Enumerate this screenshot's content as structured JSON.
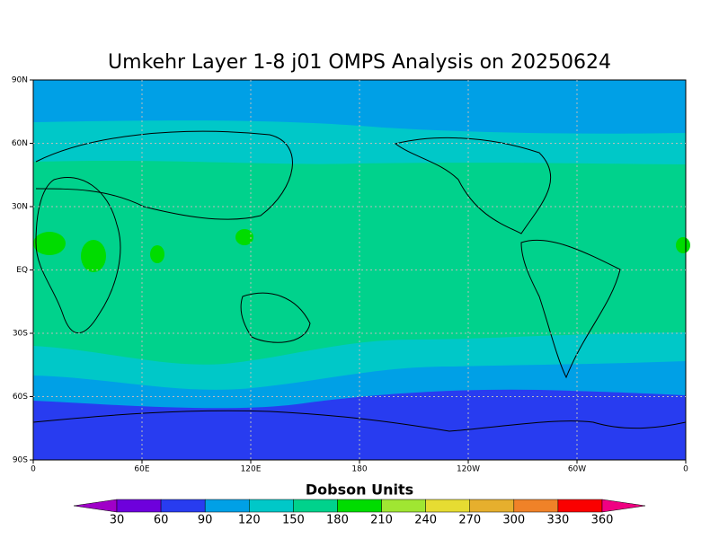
{
  "title": "Umkehr Layer 1-8 j01 OMPS Analysis on 20250624",
  "y_axis_labels": [
    "90N",
    "60N",
    "30N",
    "EQ",
    "30S",
    "60S",
    "90S"
  ],
  "x_axis_labels": [
    "0",
    "60E",
    "120E",
    "180",
    "120W",
    "60W",
    "0"
  ],
  "colorbar": {
    "title": "Dobson Units",
    "ticks": [
      30,
      60,
      90,
      120,
      150,
      180,
      210,
      240,
      270,
      300,
      330,
      360
    ],
    "colors": [
      "#a000c8",
      "#6e00dc",
      "#283cf0",
      "#00a0e6",
      "#00c8c8",
      "#00d28c",
      "#00dc00",
      "#a0e632",
      "#e6dc32",
      "#e6af2d",
      "#f08228",
      "#fa0000",
      "#f00082"
    ]
  }
}
